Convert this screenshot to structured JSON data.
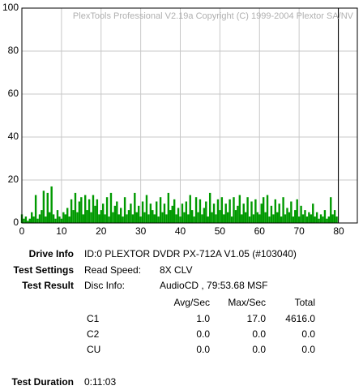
{
  "chart_data": {
    "type": "bar",
    "watermark": "PlexTools Professional V2.19a Copyright (C) 1999-2004 Plextor SA/NV",
    "color": "#009900",
    "grid": true,
    "end_marker": 79.89,
    "xlim": [
      0,
      84.7
    ],
    "ylim": [
      0,
      100
    ],
    "xticks": [
      0,
      10,
      20,
      30,
      40,
      50,
      60,
      70,
      80
    ],
    "yticks": [
      0,
      20,
      40,
      60,
      80,
      100
    ],
    "x": [
      0,
      0.5,
      1,
      1.5,
      2,
      2.5,
      3,
      3.5,
      4,
      4.5,
      5,
      5.5,
      6,
      6.5,
      7,
      7.5,
      8,
      8.5,
      9,
      9.5,
      10,
      10.5,
      11,
      11.5,
      12,
      12.5,
      13,
      13.5,
      14,
      14.5,
      15,
      15.5,
      16,
      16.5,
      17,
      17.5,
      18,
      18.5,
      19,
      19.5,
      20,
      20.5,
      21,
      21.5,
      22,
      22.5,
      23,
      23.5,
      24,
      24.5,
      25,
      25.5,
      26,
      26.5,
      27,
      27.5,
      28,
      28.5,
      29,
      29.5,
      30,
      30.5,
      31,
      31.5,
      32,
      32.5,
      33,
      33.5,
      34,
      34.5,
      35,
      35.5,
      36,
      36.5,
      37,
      37.5,
      38,
      38.5,
      39,
      39.5,
      40,
      40.5,
      41,
      41.5,
      42,
      42.5,
      43,
      43.5,
      44,
      44.5,
      45,
      45.5,
      46,
      46.5,
      47,
      47.5,
      48,
      48.5,
      49,
      49.5,
      50,
      50.5,
      51,
      51.5,
      52,
      52.5,
      53,
      53.5,
      54,
      54.5,
      55,
      55.5,
      56,
      56.5,
      57,
      57.5,
      58,
      58.5,
      59,
      59.5,
      60,
      60.5,
      61,
      61.5,
      62,
      62.5,
      63,
      63.5,
      64,
      64.5,
      65,
      65.5,
      66,
      66.5,
      67,
      67.5,
      68,
      68.5,
      69,
      69.5,
      70,
      70.5,
      71,
      71.5,
      72,
      72.5,
      73,
      73.5,
      74,
      74.5,
      75,
      75.5,
      76,
      76.5,
      77,
      77.5,
      78,
      78.5,
      79,
      79.5
    ],
    "values": [
      4,
      2,
      3,
      1,
      2,
      5,
      3,
      13,
      2,
      4,
      6,
      15,
      3,
      14,
      5,
      17,
      4,
      2,
      6,
      3,
      2,
      5,
      4,
      7,
      3,
      11,
      6,
      14,
      5,
      10,
      12,
      4,
      13,
      6,
      11,
      5,
      13,
      8,
      11,
      4,
      6,
      9,
      4,
      12,
      3,
      14,
      5,
      8,
      10,
      4,
      7,
      3,
      12,
      4,
      6,
      9,
      4,
      14,
      5,
      8,
      3,
      10,
      5,
      13,
      4,
      9,
      6,
      4,
      10,
      3,
      12,
      5,
      9,
      4,
      14,
      6,
      8,
      11,
      4,
      7,
      3,
      9,
      5,
      10,
      4,
      13,
      6,
      3,
      12,
      5,
      11,
      4,
      7,
      10,
      3,
      14,
      5,
      9,
      4,
      11,
      6,
      12,
      4,
      9,
      5,
      11,
      3,
      12,
      6,
      8,
      13,
      4,
      9,
      5,
      12,
      3,
      10,
      4,
      11,
      5,
      4,
      9,
      12,
      5,
      13,
      3,
      8,
      4,
      11,
      5,
      9,
      3,
      12,
      4,
      7,
      5,
      10,
      3,
      6,
      11,
      3,
      8,
      4,
      6,
      3,
      5,
      4,
      9,
      3,
      5,
      2,
      4,
      3,
      6,
      2,
      3,
      12,
      4,
      6,
      3
    ]
  },
  "report": {
    "drive_info": {
      "label": "Drive Info",
      "value": "ID:0 PLEXTOR DVDR PX-712A V1.05 (#103040)"
    },
    "test_settings": {
      "label": "Test Settings",
      "key": "Read Speed:",
      "value": "8X CLV"
    },
    "test_result": {
      "label": "Test Result",
      "key": "Disc Info:",
      "value": "AudioCD , 79:53.68 MSF"
    },
    "table": {
      "headers": [
        "Avg/Sec",
        "Max/Sec",
        "Total"
      ],
      "rows": [
        [
          "C1",
          "1.0",
          "17.0",
          "4616.0"
        ],
        [
          "C2",
          "0.0",
          "0.0",
          "0.0"
        ],
        [
          "CU",
          "0.0",
          "0.0",
          "0.0"
        ]
      ]
    },
    "test_duration": {
      "label": "Test Duration",
      "value": "0:11:03"
    }
  }
}
